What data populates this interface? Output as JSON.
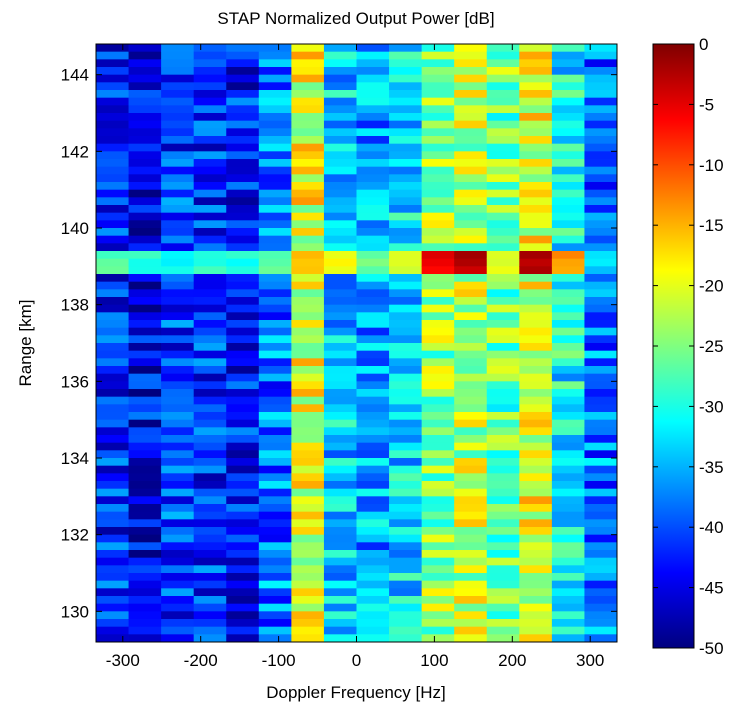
{
  "chart_data": {
    "type": "heatmap",
    "title": "STAP Normalized Output Power [dB]",
    "xlabel": "Doppler Frequency [Hz]",
    "ylabel": "Range [km]",
    "xlim": [
      -334.4,
      334.4
    ],
    "ylim": [
      129.2,
      144.8
    ],
    "xticks": [
      -300,
      -200,
      -100,
      0,
      100,
      200,
      300
    ],
    "yticks": [
      130,
      132,
      134,
      136,
      138,
      140,
      142,
      144
    ],
    "colorbar": {
      "range": [
        -50,
        0
      ],
      "ticks": [
        0,
        -5,
        -10,
        -15,
        -20,
        -25,
        -30,
        -35,
        -40,
        -45,
        -50
      ],
      "colormap": "jet"
    },
    "doppler_bins_hz": [
      -313.5,
      -271.7,
      -229.9,
      -188.1,
      -146.3,
      -104.5,
      -62.7,
      -20.9,
      20.9,
      62.7,
      104.5,
      146.3,
      188.1,
      229.9,
      271.7,
      313.5
    ],
    "column_profile_db": [
      -42,
      -44,
      -41,
      -42,
      -43,
      -38,
      -20,
      -34,
      -36,
      -33,
      -24,
      -22,
      -26,
      -20,
      -31,
      -38
    ],
    "target_row": {
      "range_km": [
        138.8,
        139.4
      ],
      "values_db": [
        -27,
        -29,
        -31,
        -29,
        -30,
        -27,
        -16,
        -19,
        -26,
        -20,
        -6,
        -3,
        -21,
        -2,
        -14,
        -33
      ]
    },
    "peaks": [
      {
        "doppler_hz": 146,
        "range_km": 139.1,
        "value_db": -2
      },
      {
        "doppler_hz": 230,
        "range_km": 139.1,
        "value_db": -1
      }
    ]
  },
  "colors": {
    "jet_low": "#00007f",
    "jet_mid": "#7fff7f",
    "jet_high": "#7f0000",
    "axis": "#000000",
    "background": "#ffffff"
  }
}
